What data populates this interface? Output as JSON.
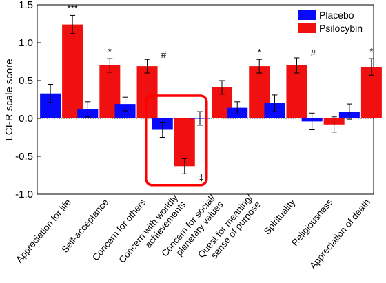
{
  "chart_data": {
    "type": "bar",
    "ylabel": "LCI-R scale score",
    "ylim": [
      -1.0,
      1.5
    ],
    "yticks": [
      "-1.0",
      "-0.5",
      "0.0",
      "0.5",
      "1.0",
      "1.5"
    ],
    "ytick_values": [
      -1.0,
      -0.5,
      0.0,
      0.5,
      1.0,
      1.5
    ],
    "categories": [
      [
        "Appreciation for life"
      ],
      [
        "Self-acceptance"
      ],
      [
        "Concern for others"
      ],
      [
        "Concern with worldly",
        "achievements"
      ],
      [
        "Concern for social/",
        "planetary values"
      ],
      [
        "Quest for meaning/",
        "sense of purpose"
      ],
      [
        "Spirituality"
      ],
      [
        "Religiousness"
      ],
      [
        "Appreciation of death"
      ]
    ],
    "series": [
      {
        "name": "Placebo",
        "color": "#0a0afa",
        "values": [
          0.33,
          0.12,
          0.19,
          -0.15,
          0.0,
          0.14,
          0.2,
          -0.04,
          0.09
        ],
        "errors": [
          0.12,
          0.1,
          0.09,
          0.1,
          0.09,
          0.08,
          0.11,
          0.11,
          0.1
        ]
      },
      {
        "name": "Psilocybin",
        "color": "#f01010",
        "values": [
          1.24,
          0.7,
          0.69,
          -0.63,
          0.41,
          0.69,
          0.7,
          -0.08,
          0.68
        ],
        "errors": [
          0.12,
          0.09,
          0.09,
          0.1,
          0.09,
          0.09,
          0.1,
          0.1,
          0.11
        ]
      }
    ],
    "annotations": [
      "***",
      "*",
      "#",
      "",
      "",
      "*",
      "#",
      "",
      "*"
    ],
    "worldly_marker": "‡",
    "legend": "top-right",
    "zero_line": "dotted",
    "highlight_category": 3,
    "highlight_color": "#ff0000"
  }
}
